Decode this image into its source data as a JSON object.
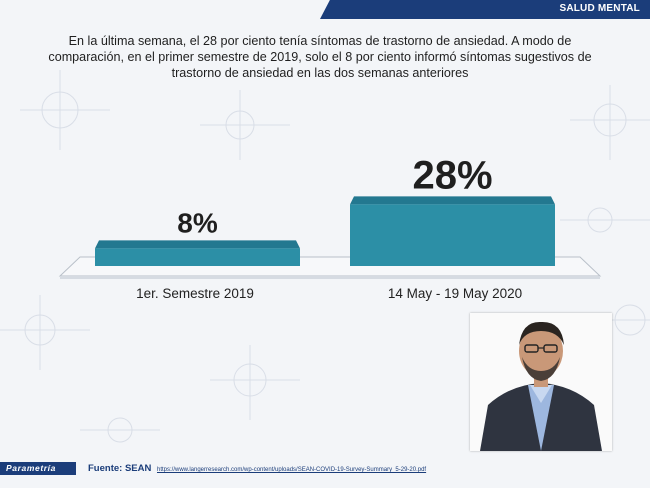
{
  "header": {
    "tag": "SALUD MENTAL"
  },
  "subtitle": "En la última semana, el 28 por ciento tenía síntomas de trastorno de ansiedad. A modo de comparación, en el primer semestre de 2019, solo el 8 por ciento informó síntomas sugestivos de trastorno de ansiedad en las dos semanas anteriores",
  "chart_data": {
    "type": "bar",
    "categories": [
      "1er. Semestre 2019",
      "14 May - 19 May 2020"
    ],
    "values": [
      8,
      28
    ],
    "data_labels": [
      "8%",
      "28%"
    ],
    "title": "",
    "xlabel": "",
    "ylabel": "",
    "ylim": [
      0,
      30
    ],
    "grid": false,
    "bar_color": "#2c8fa6"
  },
  "footer": {
    "brand": "Parametría",
    "source_label": "Fuente: SEAN",
    "source_url": "https://www.langerresearch.com/wp-content/uploads/SEAN-COVID-19-Survey-Summary_5-29-20.pdf"
  },
  "colors": {
    "brand_blue": "#1b3d7a",
    "bar_teal": "#2c8fa6",
    "background": "#f3f5f8"
  }
}
